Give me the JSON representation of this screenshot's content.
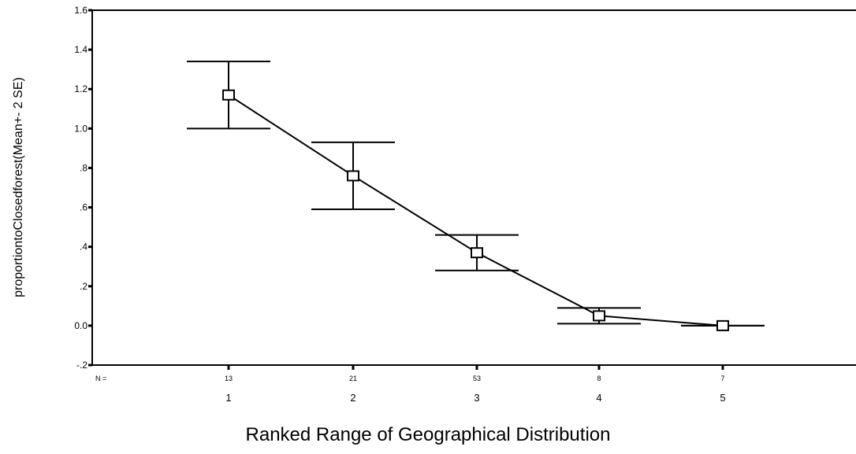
{
  "chart_data": {
    "type": "line",
    "subtype": "error-bar",
    "xlabel": "Ranked Range of Geographical Distribution",
    "ylabel": "proportiontoClosedforest(Mean+- 2 SE)",
    "ylim": [
      -0.2,
      1.6
    ],
    "y_ticks": [
      "-.2",
      "0.0",
      ".2",
      ".4",
      ".6",
      ".8",
      "1.0",
      "1.2",
      "1.4",
      "1.6"
    ],
    "y_tick_values": [
      -0.2,
      0.0,
      0.2,
      0.4,
      0.6,
      0.8,
      1.0,
      1.2,
      1.4,
      1.6
    ],
    "categories": [
      "1",
      "2",
      "3",
      "4",
      "5"
    ],
    "n_label": "N =",
    "n_values": [
      "13",
      "21",
      "53",
      "8",
      "7"
    ],
    "series": [
      {
        "values": [
          1.17,
          0.76,
          0.37,
          0.05,
          0.0
        ],
        "lower": [
          1.0,
          0.59,
          0.28,
          0.01,
          0.0
        ],
        "upper": [
          1.34,
          0.93,
          0.46,
          0.09,
          0.0
        ]
      }
    ],
    "marker": "open-square",
    "grid": false,
    "legend": "none"
  }
}
